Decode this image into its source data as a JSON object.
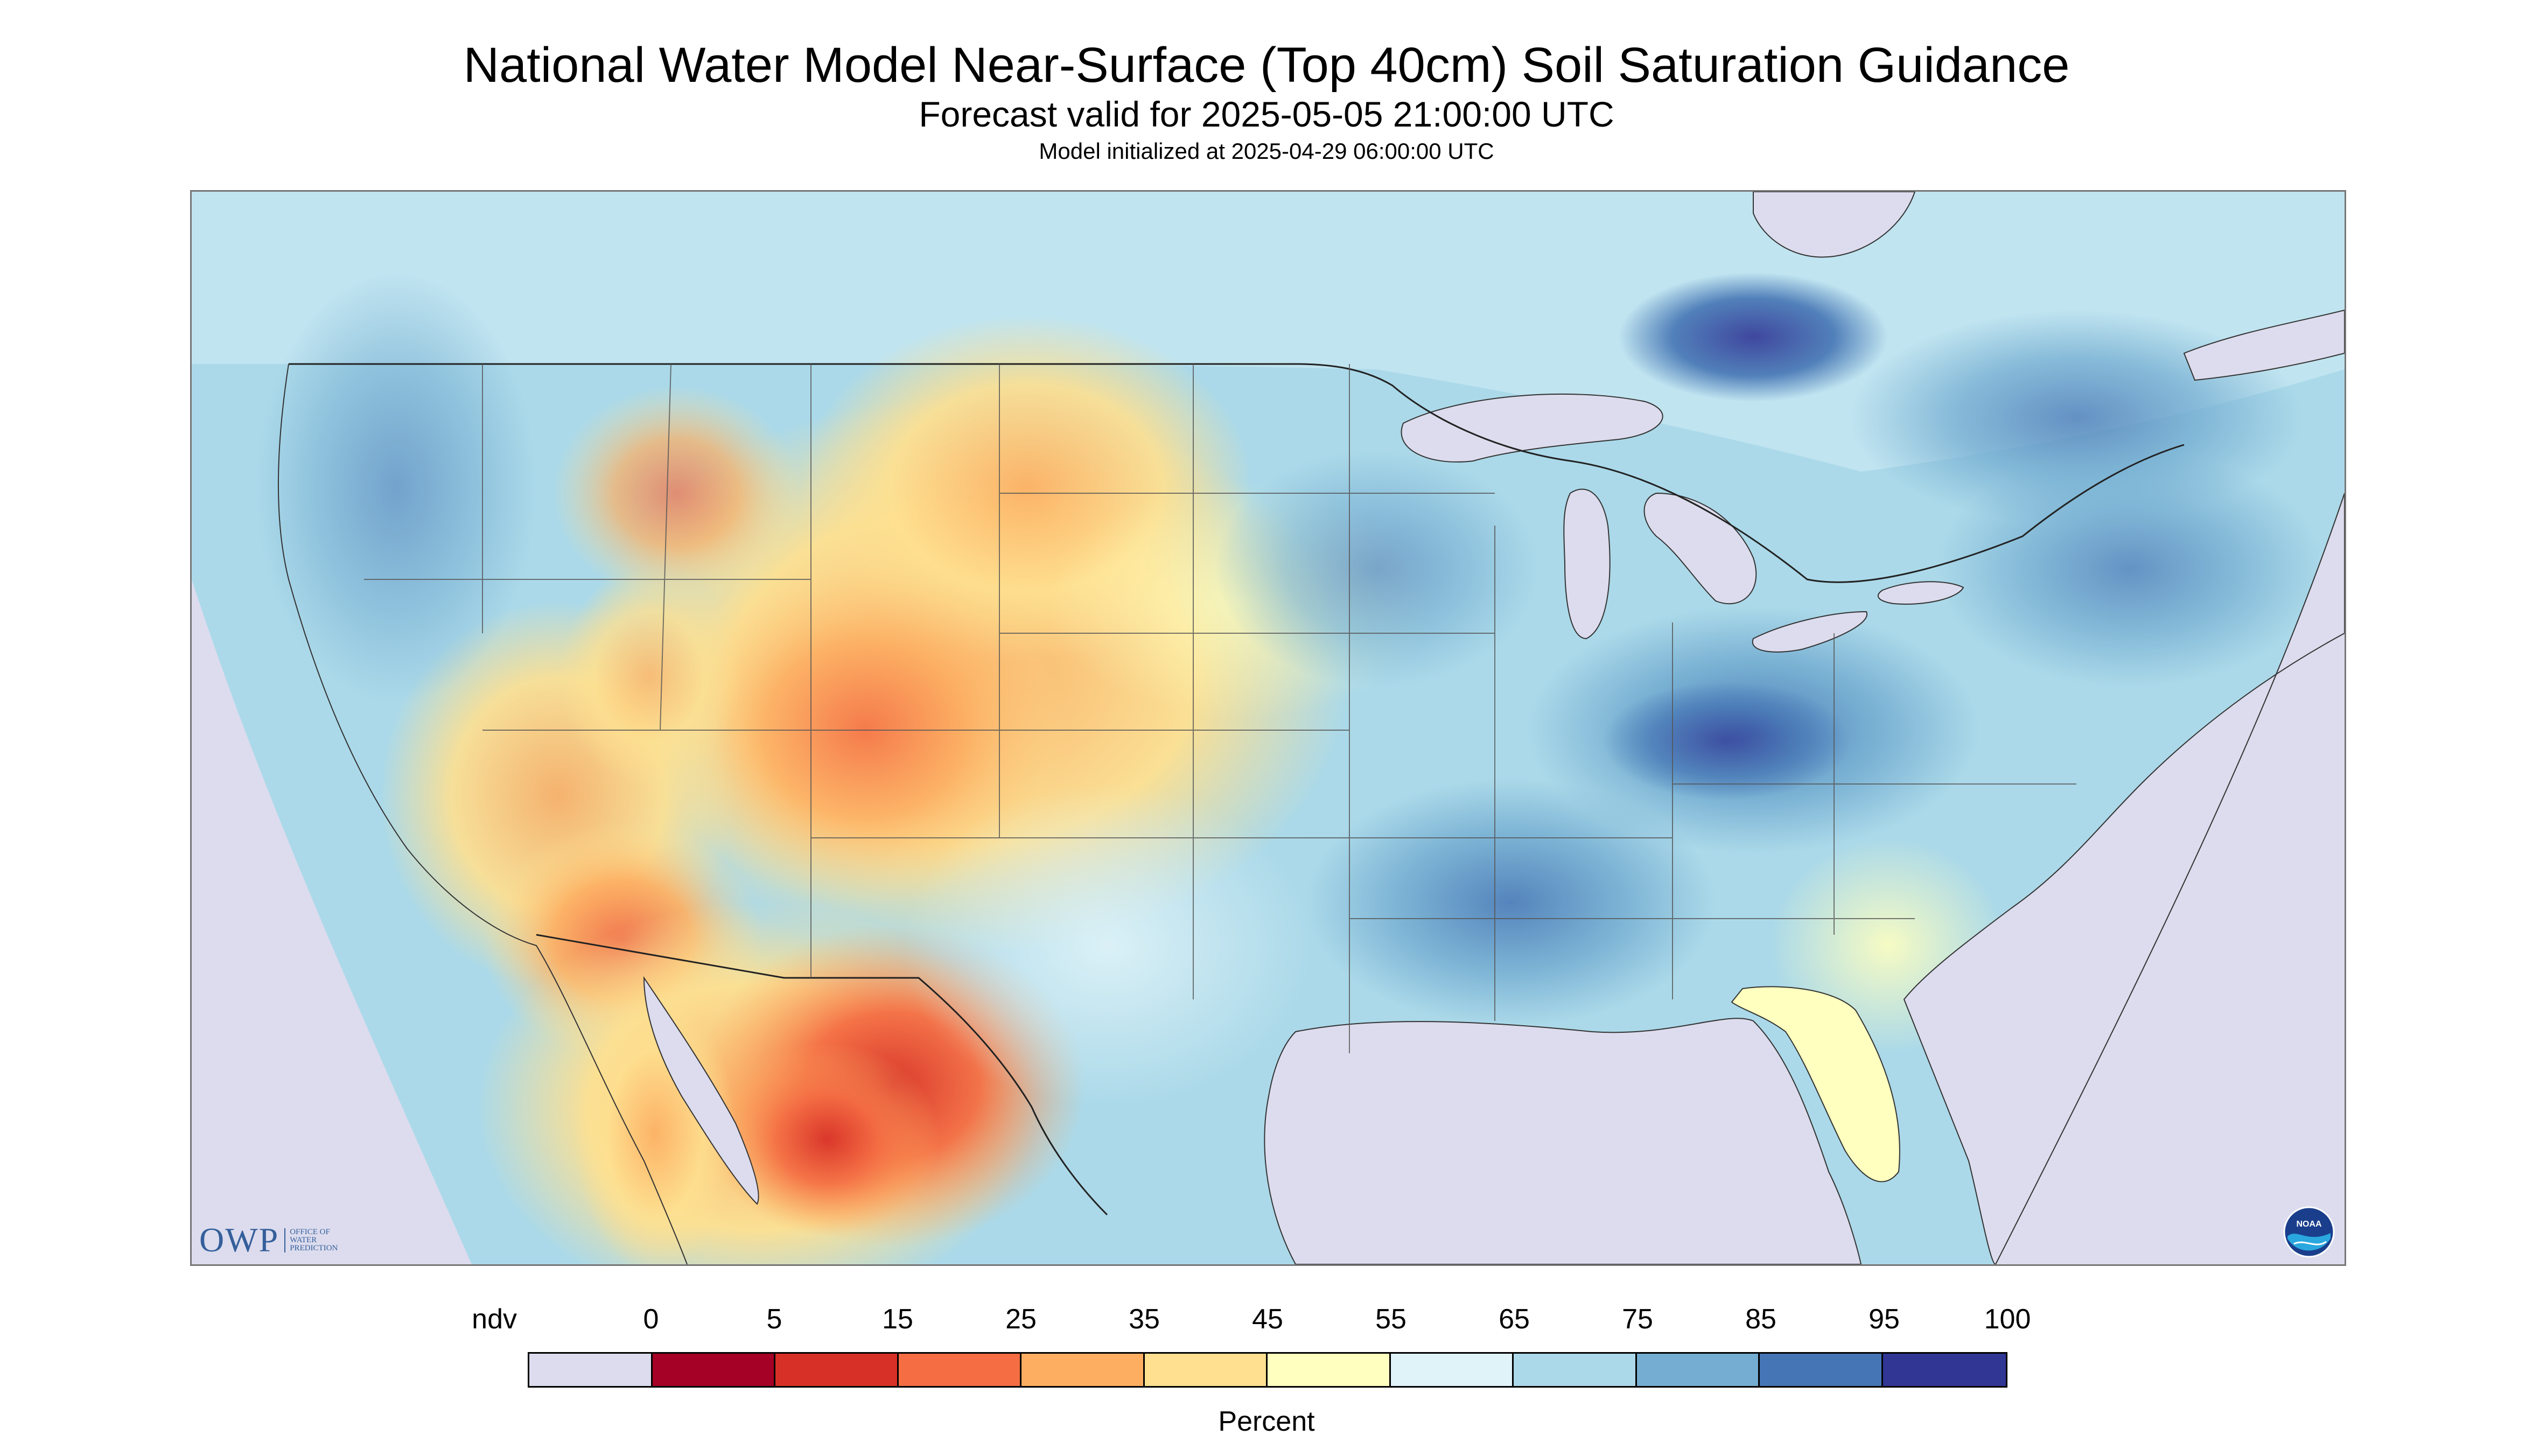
{
  "map": {
    "title": "National Water Model Near-Surface (Top 40cm) Soil Saturation Guidance",
    "subtitle": "Forecast valid for 2025-05-05 21:00:00 UTC",
    "init_text": "Model initialized at 2025-04-29 06:00:00 UTC",
    "region": "Contiguous United States"
  },
  "logos": {
    "owp": "OWP",
    "owp_sub": [
      "OFFICE OF",
      "WATER",
      "PREDICTION"
    ],
    "noaa": "NOAA"
  },
  "legend": {
    "unit": "Percent",
    "labels": [
      "ndv",
      "0",
      "5",
      "15",
      "25",
      "35",
      "45",
      "55",
      "65",
      "75",
      "85",
      "95",
      "100"
    ],
    "colors": [
      "#dcdcee",
      "#a50026",
      "#d73027",
      "#f46d43",
      "#fdae61",
      "#fee090",
      "#ffffbf",
      "#e0f3f8",
      "#abd9e9",
      "#74add1",
      "#4575b4",
      "#313695"
    ]
  }
}
